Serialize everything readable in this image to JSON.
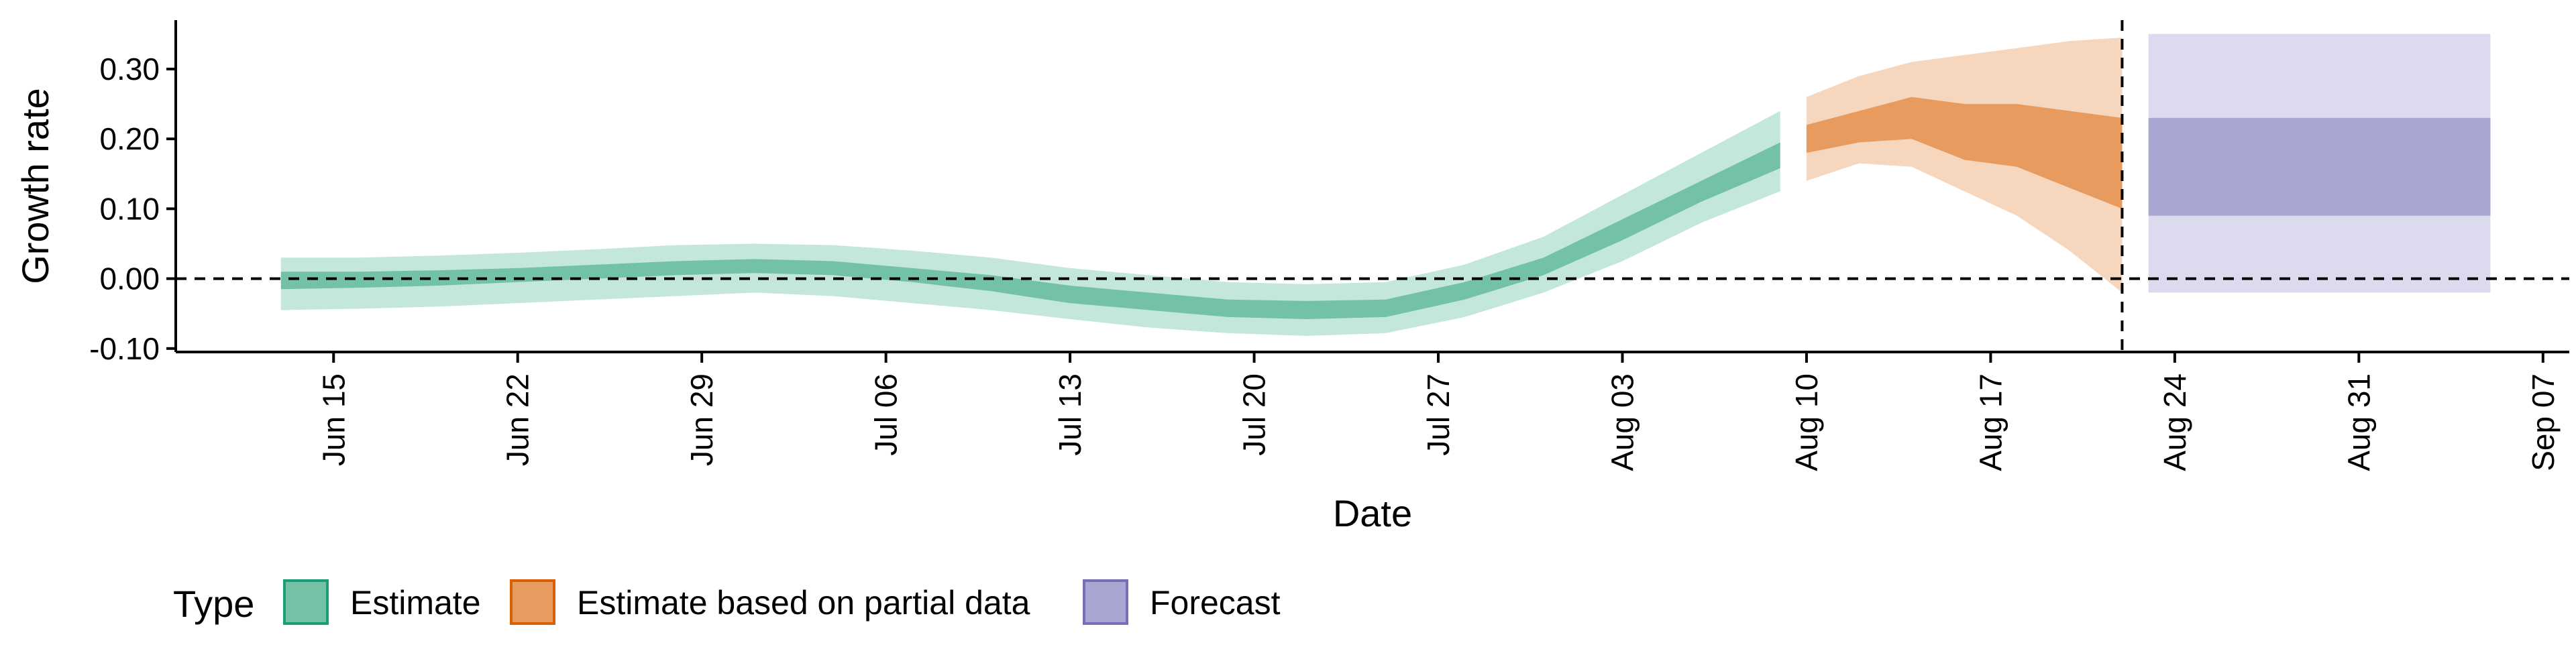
{
  "chart_data": {
    "type": "area",
    "xlabel": "Date",
    "ylabel": "Growth rate",
    "ylim": [
      -0.105,
      0.37
    ],
    "xlim": [
      "2020-06-09",
      "2020-09-08"
    ],
    "y_ticks": [
      -0.1,
      0.0,
      0.1,
      0.2,
      0.3
    ],
    "y_tick_labels": [
      "-0.10",
      "0.00",
      "0.10",
      "0.20",
      "0.30"
    ],
    "x_ticks": [
      "2020-06-15",
      "2020-06-22",
      "2020-06-29",
      "2020-07-06",
      "2020-07-13",
      "2020-07-20",
      "2020-07-27",
      "2020-08-03",
      "2020-08-10",
      "2020-08-17",
      "2020-08-24",
      "2020-08-31",
      "2020-09-07"
    ],
    "x_tick_labels": [
      "Jun 15",
      "Jun 22",
      "Jun 29",
      "Jul 06",
      "Jul 13",
      "Jul 20",
      "Jul 27",
      "Aug 03",
      "Aug 10",
      "Aug 17",
      "Aug 24",
      "Aug 31",
      "Sep 07"
    ],
    "reference_lines": {
      "horizontal_y": 0.0,
      "vertical_date": "2020-08-22"
    },
    "legend": {
      "title": "Type",
      "placement": "bottom-left",
      "entries": [
        {
          "label": "Estimate",
          "fill": "#73c2a6",
          "border": "#1b9e77"
        },
        {
          "label": "Estimate based on partial data",
          "fill": "#e89b5f",
          "border": "#d95f02"
        },
        {
          "label": "Forecast",
          "fill": "#a9a6d1",
          "border": "#7570b3"
        }
      ]
    },
    "series": [
      {
        "name": "Estimate",
        "outer_color": "#c3e7da",
        "inner_color": "#73c2a6",
        "x": [
          "2020-06-13",
          "2020-06-16",
          "2020-06-19",
          "2020-06-22",
          "2020-06-25",
          "2020-06-28",
          "2020-07-01",
          "2020-07-04",
          "2020-07-07",
          "2020-07-10",
          "2020-07-13",
          "2020-07-16",
          "2020-07-19",
          "2020-07-22",
          "2020-07-25",
          "2020-07-28",
          "2020-07-31",
          "2020-08-03",
          "2020-08-06",
          "2020-08-09"
        ],
        "lower_90": [
          -0.045,
          -0.043,
          -0.04,
          -0.035,
          -0.03,
          -0.025,
          -0.02,
          -0.025,
          -0.035,
          -0.045,
          -0.058,
          -0.07,
          -0.078,
          -0.082,
          -0.078,
          -0.055,
          -0.02,
          0.025,
          0.08,
          0.125
        ],
        "lower_50": [
          -0.015,
          -0.013,
          -0.01,
          -0.005,
          0.0,
          0.005,
          0.008,
          0.005,
          -0.005,
          -0.018,
          -0.035,
          -0.045,
          -0.055,
          -0.058,
          -0.055,
          -0.03,
          0.005,
          0.055,
          0.11,
          0.158
        ],
        "upper_50": [
          0.01,
          0.01,
          0.012,
          0.015,
          0.02,
          0.025,
          0.028,
          0.025,
          0.015,
          0.005,
          -0.01,
          -0.02,
          -0.03,
          -0.032,
          -0.03,
          -0.005,
          0.03,
          0.085,
          0.14,
          0.195
        ],
        "upper_90": [
          0.03,
          0.03,
          0.033,
          0.037,
          0.042,
          0.048,
          0.05,
          0.048,
          0.04,
          0.03,
          0.015,
          0.005,
          -0.005,
          -0.008,
          -0.005,
          0.02,
          0.06,
          0.12,
          0.18,
          0.24
        ]
      },
      {
        "name": "Estimate based on partial data",
        "outer_color": "#f6d6bc",
        "inner_color": "#e89b5f",
        "x": [
          "2020-08-10",
          "2020-08-12",
          "2020-08-14",
          "2020-08-16",
          "2020-08-18",
          "2020-08-20",
          "2020-08-22"
        ],
        "lower_90": [
          0.14,
          0.165,
          0.16,
          0.125,
          0.09,
          0.04,
          -0.02
        ],
        "lower_50": [
          0.18,
          0.195,
          0.2,
          0.17,
          0.16,
          0.13,
          0.1
        ],
        "upper_50": [
          0.22,
          0.24,
          0.26,
          0.25,
          0.25,
          0.24,
          0.23
        ],
        "upper_90": [
          0.26,
          0.29,
          0.31,
          0.32,
          0.33,
          0.34,
          0.345
        ]
      },
      {
        "name": "Forecast",
        "outer_color": "#dcdaee",
        "inner_color": "#a9a6d1",
        "x": [
          "2020-08-23",
          "2020-09-05"
        ],
        "lower_90": [
          -0.02,
          -0.02
        ],
        "lower_50": [
          0.09,
          0.09
        ],
        "upper_50": [
          0.23,
          0.23
        ],
        "upper_90": [
          0.35,
          0.35
        ]
      }
    ]
  }
}
